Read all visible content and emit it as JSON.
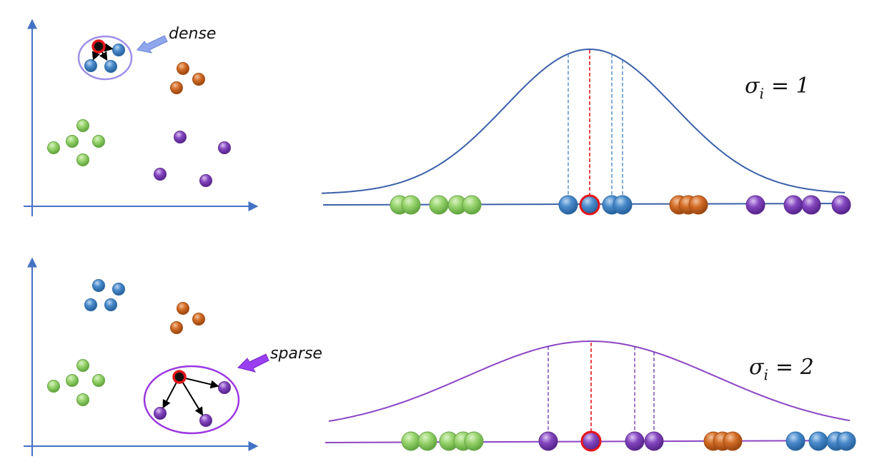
{
  "colors": {
    "axis": "#4472c4",
    "green": "#8ccf5f",
    "blue": "#3d7fc1",
    "orange": "#c8621d",
    "purple": "#7b3fb6",
    "highlight": "#e2151b",
    "dense_ellipse": "#9f8fe8",
    "sparse_ellipse": "#9b37e3",
    "dense_arrow": "#8fa6ec",
    "sparse_arrow": "#9a3ff0",
    "curve_top": "#3a60a8",
    "curve_bottom": "#8c45c4"
  },
  "panels": [
    {
      "label": "dense",
      "sigma_symbol": "σ",
      "sigma_sub": "i",
      "sigma_rest": "= 1",
      "neighbor_group": "blue"
    },
    {
      "label": "sparse",
      "sigma_symbol": "σ",
      "sigma_sub": "i",
      "sigma_rest": "= 2",
      "neighbor_group": "purple"
    }
  ]
}
